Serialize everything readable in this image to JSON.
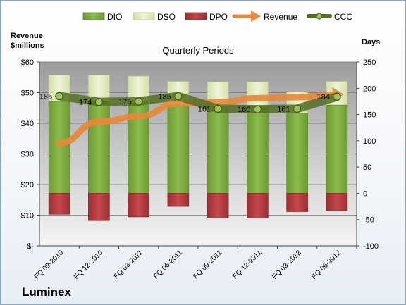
{
  "company": "Luminex",
  "chart_data": {
    "type": "bar",
    "title": "Quarterly Periods",
    "left_axis": {
      "title_line1": "Revenue",
      "title_line2": "$millions",
      "ylim": [
        0,
        60
      ],
      "ticks": [
        {
          "v": 0,
          "label": "$-"
        },
        {
          "v": 10,
          "label": "$10"
        },
        {
          "v": 20,
          "label": "$20"
        },
        {
          "v": 30,
          "label": "$30"
        },
        {
          "v": 40,
          "label": "$40"
        },
        {
          "v": 50,
          "label": "$50"
        },
        {
          "v": 60,
          "label": "$60"
        }
      ]
    },
    "right_axis": {
      "title": "Days",
      "ylim": [
        -100,
        250
      ],
      "ticks": [
        {
          "v": -100,
          "label": "-100"
        },
        {
          "v": -50,
          "label": "-50"
        },
        {
          "v": 0,
          "label": "0"
        },
        {
          "v": 50,
          "label": "50"
        },
        {
          "v": 100,
          "label": "100"
        },
        {
          "v": 150,
          "label": "150"
        },
        {
          "v": 200,
          "label": "200"
        },
        {
          "v": 250,
          "label": "250"
        }
      ]
    },
    "categories": [
      "FQ 09-2010",
      "FQ 12-2010",
      "FQ 03-2011",
      "FQ 06-2011",
      "FQ 09-2011",
      "FQ 12-2011",
      "FQ 03-2012",
      "FQ 06-2012"
    ],
    "series": [
      {
        "name": "DIO",
        "axis": "right",
        "color": "#77a33a",
        "values": [
          175,
          175,
          175,
          168,
          165,
          165,
          153,
          168
        ]
      },
      {
        "name": "DSO",
        "axis": "right",
        "color": "#dde8b8",
        "values": [
          50,
          50,
          48,
          45,
          47,
          47,
          40,
          45
        ]
      },
      {
        "name": "DPO",
        "axis": "right",
        "color": "#b23b3f",
        "values": [
          -40,
          -52,
          -45,
          -25,
          -47,
          -47,
          -35,
          -33
        ]
      },
      {
        "name": "Revenue",
        "axis": "left",
        "color": "#e8883a",
        "values": [
          33.5,
          40.5,
          42.2,
          46.5,
          46.9,
          48.2,
          48.5,
          49.3
        ]
      },
      {
        "name": "CCC",
        "axis": "right",
        "color": "#617d2b",
        "values": [
          185,
          174,
          175,
          185,
          161,
          160,
          161,
          184
        ],
        "labels": [
          "185",
          "174",
          "175",
          "185",
          "161",
          "160",
          "161",
          "184"
        ]
      }
    ],
    "legend_position": "top",
    "grid": true
  }
}
